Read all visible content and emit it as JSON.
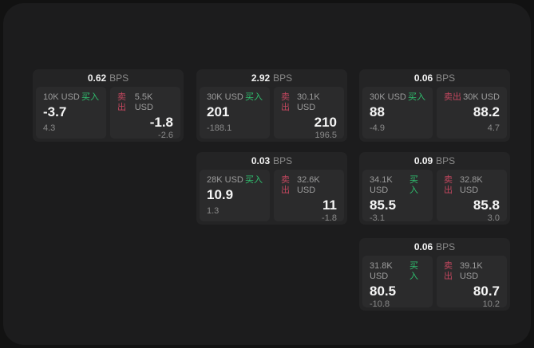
{
  "labels": {
    "buy": "买入",
    "sell": "卖出",
    "bps_unit": "BPS"
  },
  "colors": {
    "buy_green": "#2fc06f",
    "sell_red": "#c4475f",
    "page_bg": "#1c1c1d",
    "card_bg": "#242425",
    "panel_bg": "#2b2b2c"
  },
  "cards": [
    {
      "bps": "0.62",
      "buy": {
        "amount": "10K USD",
        "price": "-3.7",
        "delta": "4.3"
      },
      "sell": {
        "amount": "5.5K USD",
        "price": "-1.8",
        "delta": "-2.6"
      }
    },
    {
      "bps": "2.92",
      "buy": {
        "amount": "30K USD",
        "price": "201",
        "delta": "-188.1"
      },
      "sell": {
        "amount": "30.1K USD",
        "price": "210",
        "delta": "196.5"
      }
    },
    {
      "bps": "0.06",
      "buy": {
        "amount": "30K USD",
        "price": "88",
        "delta": "-4.9"
      },
      "sell": {
        "amount": "30K USD",
        "price": "88.2",
        "delta": "4.7"
      }
    },
    {
      "bps": "0.03",
      "buy": {
        "amount": "28K USD",
        "price": "10.9",
        "delta": "1.3"
      },
      "sell": {
        "amount": "32.6K USD",
        "price": "11",
        "delta": "-1.8"
      }
    },
    {
      "bps": "0.09",
      "buy": {
        "amount": "34.1K USD",
        "price": "85.5",
        "delta": "-3.1"
      },
      "sell": {
        "amount": "32.8K USD",
        "price": "85.8",
        "delta": "3.0"
      }
    },
    {
      "bps": "0.06",
      "buy": {
        "amount": "31.8K USD",
        "price": "80.5",
        "delta": "-10.8"
      },
      "sell": {
        "amount": "39.1K USD",
        "price": "80.7",
        "delta": "10.2"
      }
    }
  ]
}
